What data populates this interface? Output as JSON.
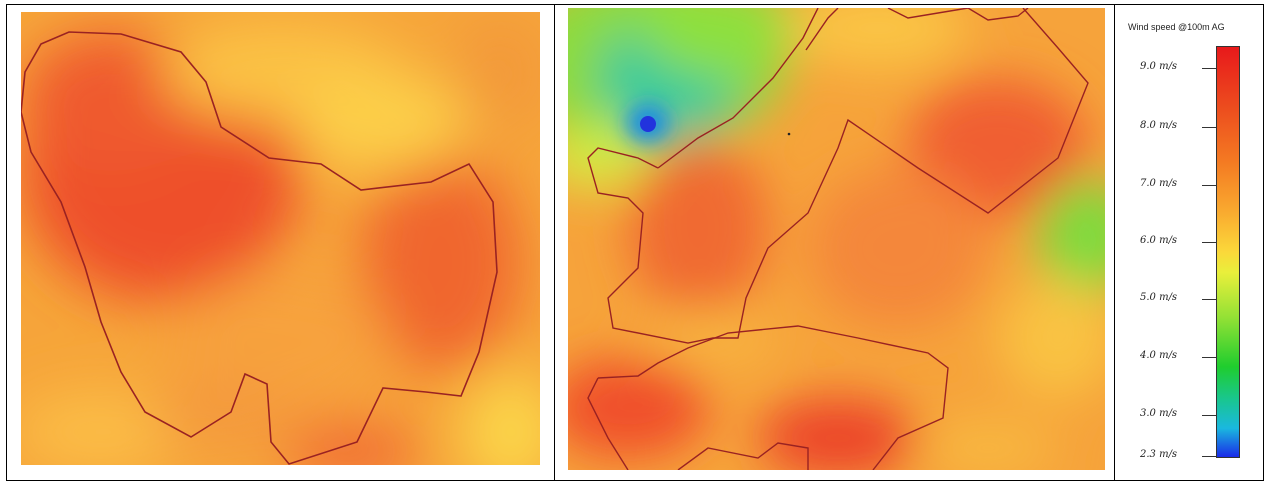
{
  "legend": {
    "title": "Wind speed @100m AG",
    "ticks": [
      "9.0 m/s",
      "8.0 m/s",
      "7.0 m/s",
      "6.0 m/s",
      "5.0 m/s",
      "4.0 m/s",
      "3.0 m/s",
      "2.3 m/s"
    ]
  },
  "colors": {
    "boundary": "#9a2222",
    "max": "#e8191b",
    "mid": "#f9a92f",
    "low": "#1fcd2e",
    "min": "#1a2be8"
  }
}
